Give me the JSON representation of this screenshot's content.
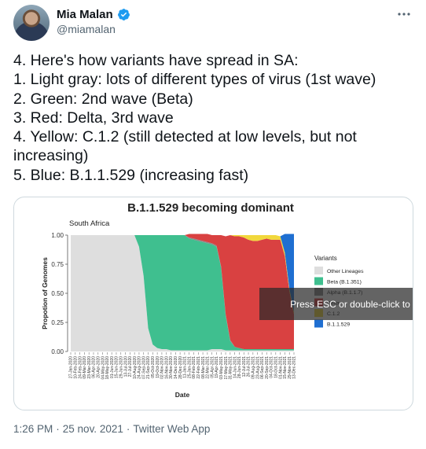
{
  "author": {
    "display_name": "Mia Malan",
    "handle": "@miamalan",
    "verified_icon": "verified-badge-icon",
    "verified_color": "#1d9bf0"
  },
  "tweet": {
    "lines": [
      "4. Here's how variants have spread in SA:",
      "1. Light gray: lots of different types of virus (1st wave)",
      "2. Green: 2nd wave (Beta)",
      "3. Red: Delta, 3rd wave",
      "4. Yellow: C.1.2 (still detected at low levels, but not increasing)",
      "5. Blue: B.1.1.529 (increasing fast)"
    ]
  },
  "overlay": {
    "text": "Press ESC or double-click to"
  },
  "meta": {
    "time": "1:26 PM",
    "separator1": "·",
    "date": "25 nov. 2021",
    "separator2": "·",
    "source": "Twitter Web App"
  },
  "chart_data": {
    "type": "area",
    "title": "B.1.1.529 becoming dominant",
    "subtitle": "South Africa",
    "xlabel": "Date",
    "ylabel": "Propotion of Genomes",
    "ylim": [
      0,
      1
    ],
    "yticks": [
      "0.00",
      "0.25",
      "0.50",
      "0.75",
      "1.00"
    ],
    "xticks": [
      "27-Jan-2020",
      "10-Feb-2020",
      "24-Feb-2020",
      "09-Mar-2020",
      "23-Mar-2020",
      "06-Apr-2020",
      "20-Apr-2020",
      "04-May-2020",
      "18-May-2020",
      "01-Jun-2020",
      "15-Jun-2020",
      "29-Jun-2020",
      "13-Jul-2020",
      "27-Jul-2020",
      "10-Aug-2020",
      "24-Aug-2020",
      "07-Sep-2020",
      "21-Sep-2020",
      "05-Oct-2020",
      "19-Oct-2020",
      "02-Nov-2020",
      "16-Nov-2020",
      "30-Nov-2020",
      "14-Dec-2020",
      "28-Dec-2020",
      "11-Jan-2021",
      "25-Jan-2021",
      "08-Feb-2021",
      "22-Feb-2021",
      "08-Mar-2021",
      "22-Mar-2021",
      "05-Apr-2021",
      "19-Apr-2021",
      "03-May-2021",
      "17-May-2021",
      "31-May-2021",
      "14-Jun-2021",
      "28-Jun-2021",
      "12-Jul-2021",
      "26-Jul-2021",
      "09-Aug-2021",
      "23-Aug-2021",
      "06-Sep-2021",
      "20-Sep-2021",
      "04-Oct-2021",
      "18-Oct-2021",
      "01-Nov-2021",
      "15-Nov-2021",
      "29-Nov-2021",
      "13-Dec-2021"
    ],
    "legend_title": "Variants",
    "legend_position": "right",
    "series": [
      {
        "name": "Other Lineages",
        "color": "#dedede",
        "values": [
          1,
          1,
          1,
          1,
          1,
          1,
          1,
          1,
          1,
          1,
          1,
          1,
          1,
          1,
          1,
          0.9,
          0.65,
          0.2,
          0.06,
          0.03,
          0.02,
          0.02,
          0.01,
          0.01,
          0.01,
          0.01,
          0.01,
          0.01,
          0.01,
          0.01,
          0.01,
          0.02,
          0.02,
          0.02,
          0.01,
          0.01,
          0.01,
          0.01,
          0.01,
          0.01,
          0.01,
          0.01,
          0.01,
          0.01,
          0.01,
          0.01,
          0.01,
          0.01,
          0.01,
          0.01
        ]
      },
      {
        "name": "Beta (B.1.351)",
        "color": "#3fbf8f",
        "values": [
          0,
          0,
          0,
          0,
          0,
          0,
          0,
          0,
          0,
          0,
          0,
          0,
          0,
          0,
          0,
          0.1,
          0.35,
          0.8,
          0.94,
          0.97,
          0.98,
          0.98,
          0.99,
          0.99,
          0.99,
          0.99,
          0.96,
          0.95,
          0.94,
          0.93,
          0.92,
          0.9,
          0.88,
          0.7,
          0.3,
          0.08,
          0.03,
          0.02,
          0.01,
          0.01,
          0.01,
          0.01,
          0.01,
          0.01,
          0.01,
          0.01,
          0.01,
          0.01,
          0.01,
          0.01
        ]
      },
      {
        "name": "Alpha (B.1.1.7)",
        "color": "#8a8a8a",
        "values": [
          0,
          0,
          0,
          0,
          0,
          0,
          0,
          0,
          0,
          0,
          0,
          0,
          0,
          0,
          0,
          0,
          0,
          0,
          0,
          0,
          0,
          0,
          0,
          0,
          0,
          0,
          0.01,
          0.01,
          0.01,
          0.01,
          0.01,
          0.01,
          0.01,
          0.01,
          0.01,
          0.01,
          0,
          0,
          0,
          0,
          0,
          0,
          0,
          0,
          0,
          0,
          0,
          0,
          0,
          0
        ]
      },
      {
        "name": "Delta",
        "color": "#d94141",
        "values": [
          0,
          0,
          0,
          0,
          0,
          0,
          0,
          0,
          0,
          0,
          0,
          0,
          0,
          0,
          0,
          0,
          0,
          0,
          0,
          0,
          0,
          0,
          0,
          0,
          0,
          0,
          0.03,
          0.04,
          0.05,
          0.06,
          0.07,
          0.07,
          0.09,
          0.27,
          0.67,
          0.9,
          0.95,
          0.96,
          0.96,
          0.94,
          0.93,
          0.93,
          0.94,
          0.95,
          0.94,
          0.94,
          0.94,
          0.8,
          0.5,
          0.3
        ]
      },
      {
        "name": "C.1.2",
        "color": "#f1d83c",
        "values": [
          0,
          0,
          0,
          0,
          0,
          0,
          0,
          0,
          0,
          0,
          0,
          0,
          0,
          0,
          0,
          0,
          0,
          0,
          0,
          0,
          0,
          0,
          0,
          0,
          0,
          0,
          0,
          0,
          0,
          0,
          0,
          0,
          0,
          0,
          0,
          0,
          0.01,
          0.01,
          0.02,
          0.04,
          0.05,
          0.05,
          0.04,
          0.03,
          0.04,
          0.04,
          0.03,
          0.03,
          0.02,
          0.02
        ]
      },
      {
        "name": "B.1.1.529",
        "color": "#1f6fd1",
        "values": [
          0,
          0,
          0,
          0,
          0,
          0,
          0,
          0,
          0,
          0,
          0,
          0,
          0,
          0,
          0,
          0,
          0,
          0,
          0,
          0,
          0,
          0,
          0,
          0,
          0,
          0,
          0,
          0,
          0,
          0,
          0,
          0,
          0,
          0,
          0,
          0,
          0,
          0,
          0,
          0,
          0,
          0,
          0,
          0,
          0,
          0,
          0,
          0.16,
          0.47,
          0.67
        ]
      }
    ]
  }
}
